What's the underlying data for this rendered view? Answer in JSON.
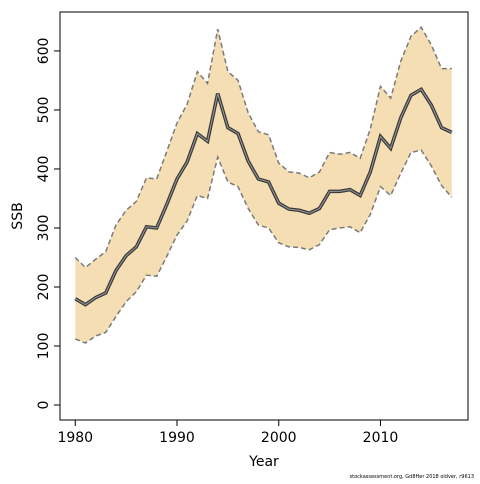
{
  "chart_data": {
    "type": "line",
    "x_label": "Year",
    "y_label": "SSB",
    "source": "stockassessment.org, Gd8Her 2018 oldver, r9613",
    "x": [
      1980,
      1981,
      1982,
      1983,
      1984,
      1985,
      1986,
      1987,
      1988,
      1989,
      1990,
      1991,
      1992,
      1993,
      1994,
      1995,
      1996,
      1997,
      1998,
      1999,
      2000,
      2001,
      2002,
      2003,
      2004,
      2005,
      2006,
      2007,
      2008,
      2009,
      2010,
      2011,
      2012,
      2013,
      2014,
      2015,
      2016,
      2017
    ],
    "values": [
      180,
      170,
      182,
      190,
      228,
      253,
      268,
      302,
      300,
      340,
      383,
      412,
      460,
      447,
      528,
      470,
      460,
      413,
      383,
      378,
      342,
      332,
      330,
      325,
      333,
      362,
      362,
      365,
      355,
      395,
      455,
      435,
      487,
      525,
      535,
      508,
      470,
      462
    ],
    "color": "#3a3a3a",
    "band": {
      "color": "#f5deb3",
      "line_color": "#7a7a7a",
      "upper": [
        250,
        233,
        247,
        260,
        305,
        330,
        345,
        385,
        383,
        430,
        478,
        510,
        565,
        545,
        637,
        565,
        550,
        495,
        463,
        458,
        410,
        395,
        393,
        385,
        395,
        428,
        425,
        428,
        418,
        468,
        540,
        520,
        583,
        625,
        640,
        610,
        570,
        570
      ],
      "lower": [
        112,
        105,
        117,
        123,
        150,
        175,
        192,
        220,
        218,
        252,
        288,
        312,
        355,
        350,
        420,
        378,
        370,
        333,
        305,
        300,
        275,
        268,
        267,
        263,
        272,
        297,
        300,
        302,
        292,
        323,
        370,
        355,
        393,
        428,
        432,
        405,
        372,
        352
      ]
    },
    "xlim": [
      1978.5,
      2018.6
    ],
    "ylim": [
      -25.4,
      666
    ],
    "xticks": [
      1980,
      1990,
      2000,
      2010
    ],
    "yticks": [
      0,
      100,
      200,
      300,
      400,
      500,
      600
    ]
  }
}
